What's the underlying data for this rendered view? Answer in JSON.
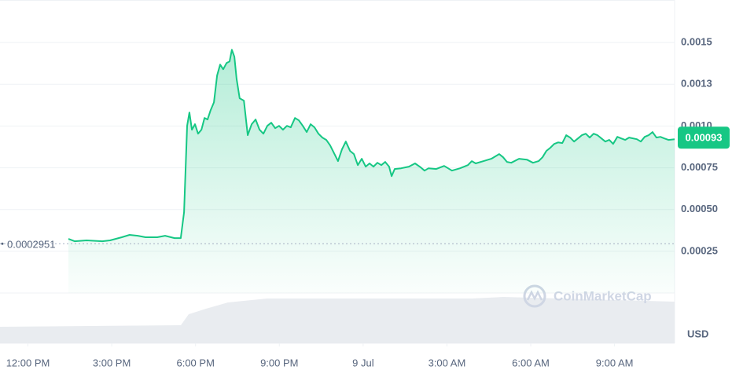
{
  "chart_data": {
    "type": "line",
    "color": "#16c784",
    "x": [
      1.45,
      1.67,
      2.1,
      2.66,
      2.94,
      3.36,
      3.64,
      3.93,
      4.21,
      4.63,
      4.91,
      5.25,
      5.47,
      5.59,
      5.7,
      5.78,
      5.87,
      5.98,
      6.09,
      6.21,
      6.32,
      6.43,
      6.54,
      6.66,
      6.77,
      6.88,
      6.99,
      7.11,
      7.22,
      7.3,
      7.39,
      7.47,
      7.58,
      7.73,
      7.87,
      8.01,
      8.15,
      8.29,
      8.43,
      8.57,
      8.71,
      8.85,
      8.99,
      9.13,
      9.27,
      9.41,
      9.56,
      9.7,
      9.84,
      9.98,
      10.12,
      10.26,
      10.4,
      10.54,
      10.68,
      10.82,
      10.96,
      11.1,
      11.24,
      11.38,
      11.53,
      11.67,
      11.81,
      11.95,
      12.09,
      12.23,
      12.37,
      12.51,
      12.65,
      12.79,
      12.93,
      13.02,
      13.13,
      13.36,
      13.64,
      13.86,
      14.06,
      14.2,
      14.34,
      14.62,
      14.9,
      15.04,
      15.18,
      15.47,
      15.75,
      15.89,
      16.03,
      16.31,
      16.59,
      16.87,
      17.01,
      17.15,
      17.3,
      17.58,
      17.86,
      18.08,
      18.28,
      18.42,
      18.56,
      18.7,
      18.84,
      18.98,
      19.13,
      19.27,
      19.41,
      19.55,
      19.69,
      19.83,
      19.97,
      20.11,
      20.25,
      20.39,
      20.53,
      20.67,
      20.81,
      20.95,
      21.1,
      21.24,
      21.38,
      21.52,
      21.8,
      21.94,
      22.08,
      22.22,
      22.36,
      22.5,
      22.64,
      22.78,
      22.93,
      23.15
    ],
    "values": [
      0.000324,
      0.00031,
      0.000315,
      0.00031,
      0.000315,
      0.000334,
      0.000348,
      0.000343,
      0.000334,
      0.000334,
      0.000343,
      0.000329,
      0.000329,
      0.000484,
      0.001001,
      0.001081,
      0.000978,
      0.001011,
      0.000954,
      0.000978,
      0.001048,
      0.001039,
      0.001095,
      0.001142,
      0.001302,
      0.001368,
      0.00134,
      0.001377,
      0.001387,
      0.001457,
      0.001415,
      0.001283,
      0.001166,
      0.001152,
      0.000945,
      0.001011,
      0.001039,
      0.000978,
      0.000954,
      0.001001,
      0.00102,
      0.000987,
      0.001001,
      0.000978,
      0.001001,
      0.000992,
      0.001048,
      0.001034,
      0.001001,
      0.000964,
      0.001011,
      0.000992,
      0.000954,
      0.000931,
      0.000917,
      0.000884,
      0.000837,
      0.00079,
      0.00086,
      0.000907,
      0.000851,
      0.000832,
      0.000766,
      0.000804,
      0.000757,
      0.000776,
      0.000757,
      0.00078,
      0.000766,
      0.000785,
      0.000757,
      0.0007,
      0.000743,
      0.000747,
      0.000757,
      0.000776,
      0.000752,
      0.000733,
      0.000747,
      0.000743,
      0.000761,
      0.000747,
      0.000733,
      0.000747,
      0.000766,
      0.00079,
      0.000776,
      0.00079,
      0.000804,
      0.000832,
      0.000813,
      0.000785,
      0.00078,
      0.000804,
      0.000799,
      0.00078,
      0.00079,
      0.000813,
      0.000851,
      0.00087,
      0.000893,
      0.000902,
      0.000898,
      0.000945,
      0.000931,
      0.000907,
      0.000926,
      0.000945,
      0.000954,
      0.000931,
      0.000954,
      0.000945,
      0.000926,
      0.000907,
      0.000917,
      0.000893,
      0.000935,
      0.000926,
      0.000917,
      0.000931,
      0.000921,
      0.000907,
      0.000935,
      0.000945,
      0.000964,
      0.000931,
      0.000935,
      0.000926,
      0.000917,
      0.000921
    ],
    "xlim": [
      -1,
      23.15
    ],
    "xticks": [
      {
        "value": 0,
        "label": "12:00 PM"
      },
      {
        "value": 3,
        "label": "3:00 PM"
      },
      {
        "value": 6,
        "label": "6:00 PM"
      },
      {
        "value": 9,
        "label": "9:00 PM"
      },
      {
        "value": 12,
        "label": "9 Jul"
      },
      {
        "value": 15,
        "label": "3:00 AM"
      },
      {
        "value": 18,
        "label": "6:00 AM"
      },
      {
        "value": 21,
        "label": "9:00 AM"
      }
    ],
    "ylim": [
      0,
      0.00175
    ],
    "yticks": [
      0.00025,
      {
        "value": 0.0005,
        "label": "0.00050"
      },
      0.00075,
      {
        "value": 0.001,
        "label": "0.0010"
      },
      {
        "value": 0.00125,
        "label": "0.0013"
      },
      0.0015
    ],
    "grid": true,
    "reference_value": 0.0002951,
    "current_value": 0.00093,
    "currency": "USD",
    "watermark": "CoinMarketCap"
  }
}
